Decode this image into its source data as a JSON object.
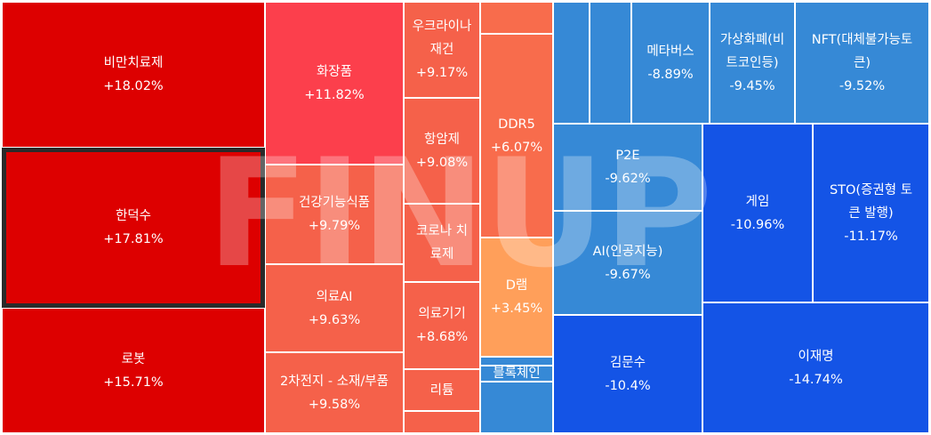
{
  "chart_data": {
    "type": "treemap",
    "value_unit": "%",
    "colors": {
      "strong_up": "#dd0000",
      "up_high": "#fc3f4c",
      "up_mid": "#f5614a",
      "up_low": "#f86c4c",
      "up_light": "#ff9f5a",
      "down_light": "#3689d6",
      "down_mid": "#1d6cd6",
      "down_strong": "#1454e6"
    },
    "tiles": [
      {
        "name": "비만치료제",
        "change": "+18.02%",
        "value": 18.02
      },
      {
        "name": "한덕수",
        "change": "+17.81%",
        "value": 17.81,
        "selected": true
      },
      {
        "name": "로봇",
        "change": "+15.71%",
        "value": 15.71
      },
      {
        "name": "화장품",
        "change": "+11.82%",
        "value": 11.82
      },
      {
        "name": "건강기능식품",
        "change": "+9.79%",
        "value": 9.79
      },
      {
        "name": "의료AI",
        "change": "+9.63%",
        "value": 9.63
      },
      {
        "name": "2차전지 - 소재/부품",
        "change": "+9.58%",
        "value": 9.58
      },
      {
        "name": "우크라이나 재건",
        "change": "+9.17%",
        "value": 9.17
      },
      {
        "name": "항암제",
        "change": "+9.08%",
        "value": 9.08
      },
      {
        "name": "코로나 치료제",
        "change": "",
        "value": null
      },
      {
        "name": "의료기기",
        "change": "+8.68%",
        "value": 8.68
      },
      {
        "name": "리튬",
        "change": "",
        "value": null
      },
      {
        "name": "",
        "change": "",
        "value": null
      },
      {
        "name": "DDR5",
        "change": "+6.07%",
        "value": 6.07
      },
      {
        "name": "D램",
        "change": "+3.45%",
        "value": 3.45
      },
      {
        "name": "",
        "change": "",
        "value": null
      },
      {
        "name": "",
        "change": "",
        "value": null
      },
      {
        "name": "블록체인",
        "change": "",
        "value": null
      },
      {
        "name": "",
        "change": "",
        "value": null
      },
      {
        "name": "",
        "change": "",
        "value": null
      },
      {
        "name": "메타버스",
        "change": "-8.89%",
        "value": -8.89
      },
      {
        "name": "가상화폐(비트코인등)",
        "change": "-9.45%",
        "value": -9.45
      },
      {
        "name": "NFT(대체불가능토큰)",
        "change": "-9.52%",
        "value": -9.52
      },
      {
        "name": "P2E",
        "change": "-9.62%",
        "value": -9.62
      },
      {
        "name": "AI(인공지능)",
        "change": "-9.67%",
        "value": -9.67
      },
      {
        "name": "게임",
        "change": "-10.96%",
        "value": -10.96
      },
      {
        "name": "STO(증권형 토큰 발행)",
        "change": "-11.17%",
        "value": -11.17
      },
      {
        "name": "김문수",
        "change": "-10.4%",
        "value": -10.4
      },
      {
        "name": "이재명",
        "change": "-14.74%",
        "value": -14.74
      }
    ]
  },
  "watermark": {
    "text": "FINUP"
  }
}
